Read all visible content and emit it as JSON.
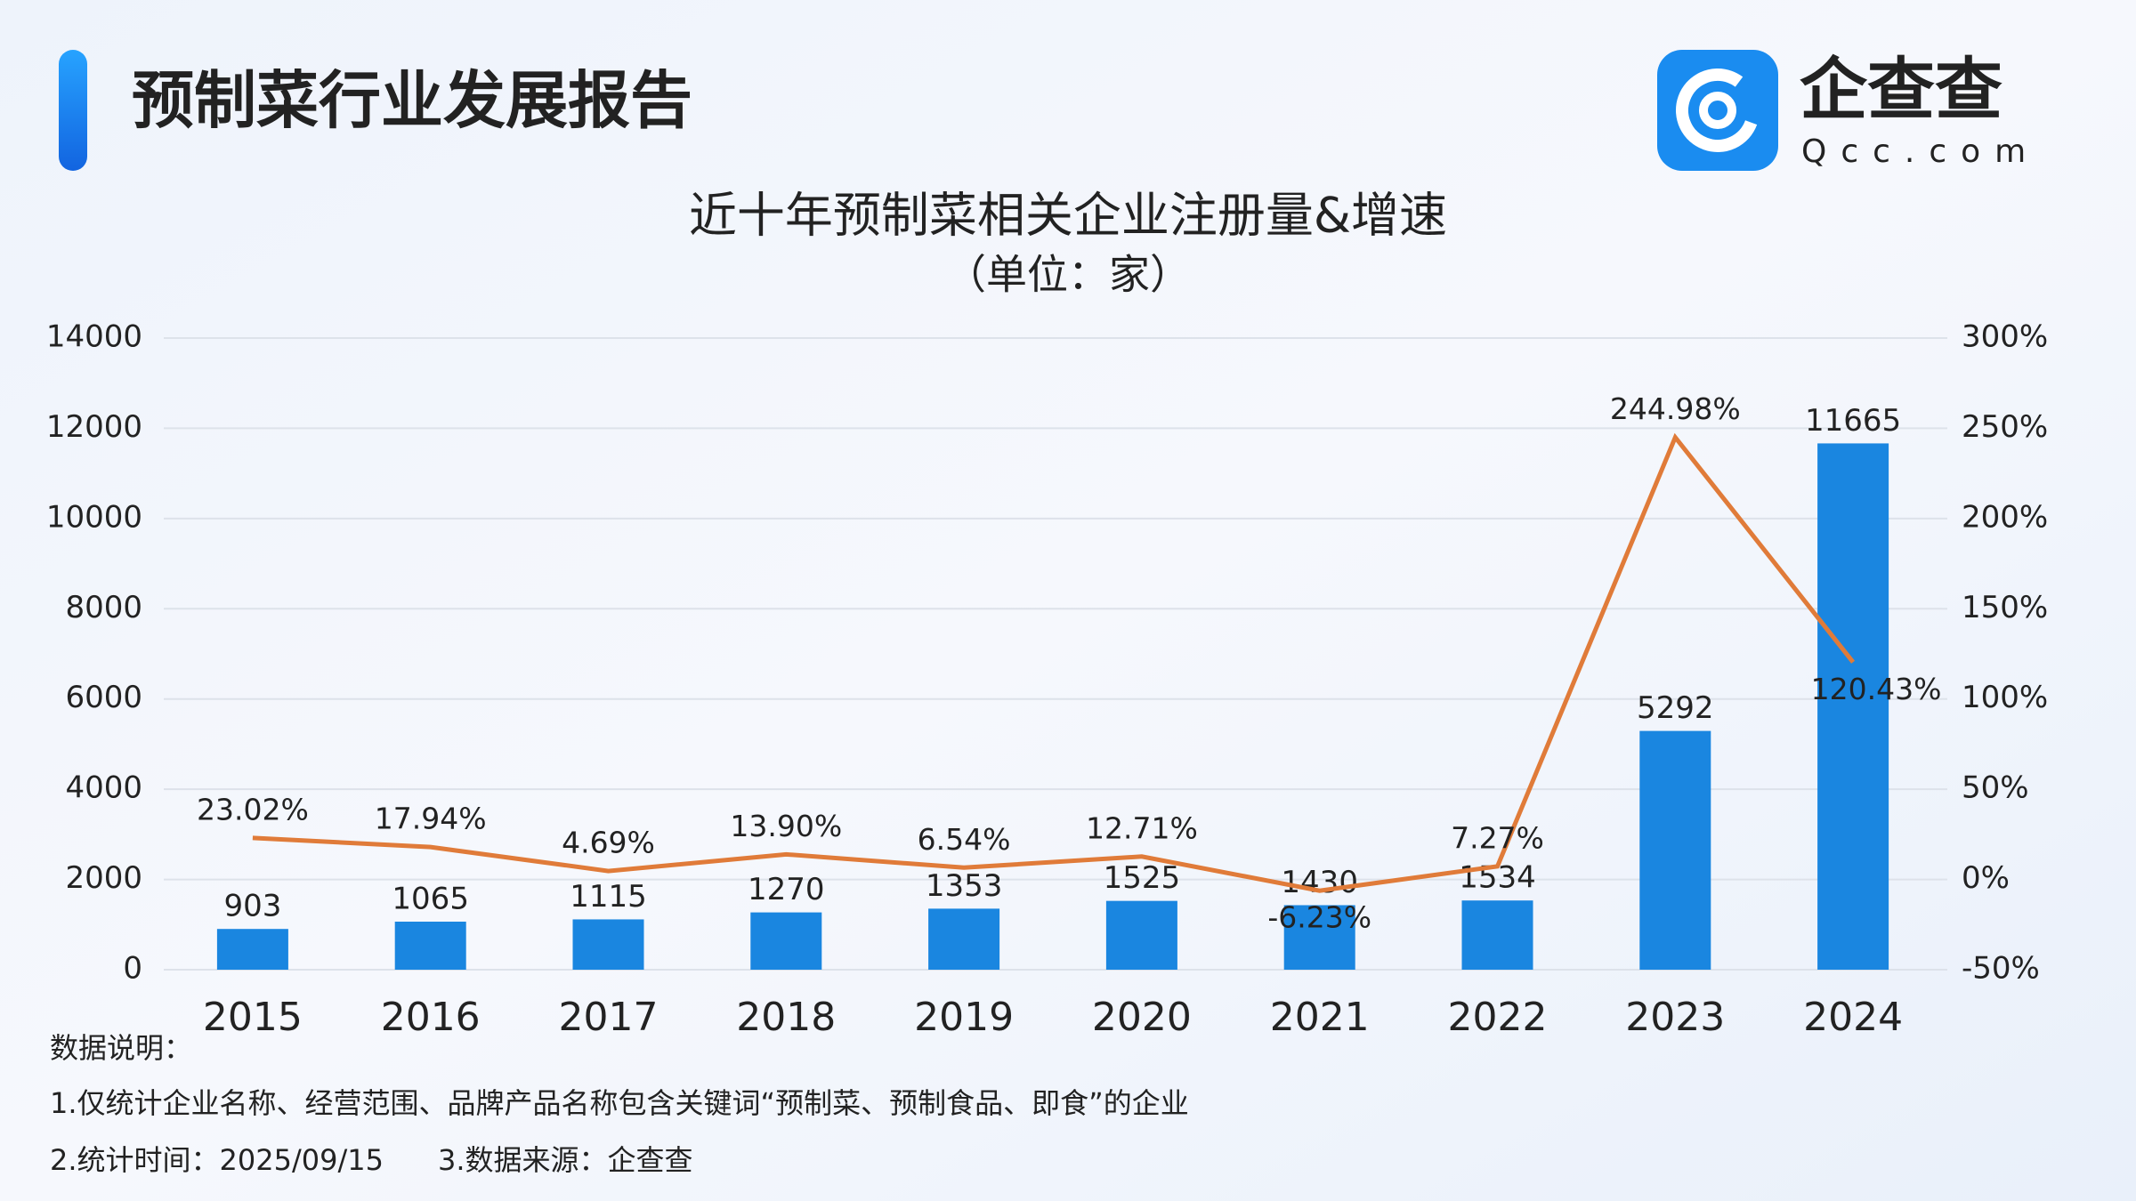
{
  "header": {
    "title": "预制菜行业发展报告",
    "logo_name": "企查查",
    "logo_domain": "Qcc.com"
  },
  "chart_data": {
    "type": "bar",
    "title": "近十年预制菜相关企业注册量&增速",
    "subtitle": "（单位：家）",
    "categories": [
      "2015",
      "2016",
      "2017",
      "2018",
      "2019",
      "2020",
      "2021",
      "2022",
      "2023",
      "2024"
    ],
    "series": [
      {
        "name": "注册量",
        "type": "bar",
        "color": "#1a86e0",
        "values": [
          903,
          1065,
          1115,
          1270,
          1353,
          1525,
          1430,
          1534,
          5292,
          11665
        ]
      },
      {
        "name": "增速",
        "type": "line",
        "axis": "y2",
        "color": "#e07b39",
        "values": [
          23.02,
          17.94,
          4.69,
          13.9,
          6.54,
          12.71,
          -6.23,
          7.27,
          244.98,
          120.43
        ],
        "value_labels": [
          "23.02%",
          "17.94%",
          "4.69%",
          "13.90%",
          "6.54%",
          "12.71%",
          "-6.23%",
          "7.27%",
          "244.98%",
          "120.43%"
        ]
      }
    ],
    "ylim": [
      0,
      14000
    ],
    "yticks": [
      0,
      2000,
      4000,
      6000,
      8000,
      10000,
      12000,
      14000
    ],
    "y2lim": [
      -50,
      300
    ],
    "y2ticks": [
      {
        "value": -50,
        "label": "-50%"
      },
      {
        "value": 0,
        "label": "0%"
      },
      {
        "value": 50,
        "label": "50%"
      },
      {
        "value": 100,
        "label": "100%"
      },
      {
        "value": 150,
        "label": "150%"
      },
      {
        "value": 200,
        "label": "200%"
      },
      {
        "value": 250,
        "label": "250%"
      },
      {
        "value": 300,
        "label": "300%"
      }
    ],
    "grid": true
  },
  "notes": {
    "heading": "数据说明：",
    "line1": "1.仅统计企业名称、经营范围、品牌产品名称包含关键词“预制菜、预制食品、即食”的企业",
    "line2": "2.统计时间：2025/09/15",
    "line3": "3.数据来源：企查查"
  }
}
